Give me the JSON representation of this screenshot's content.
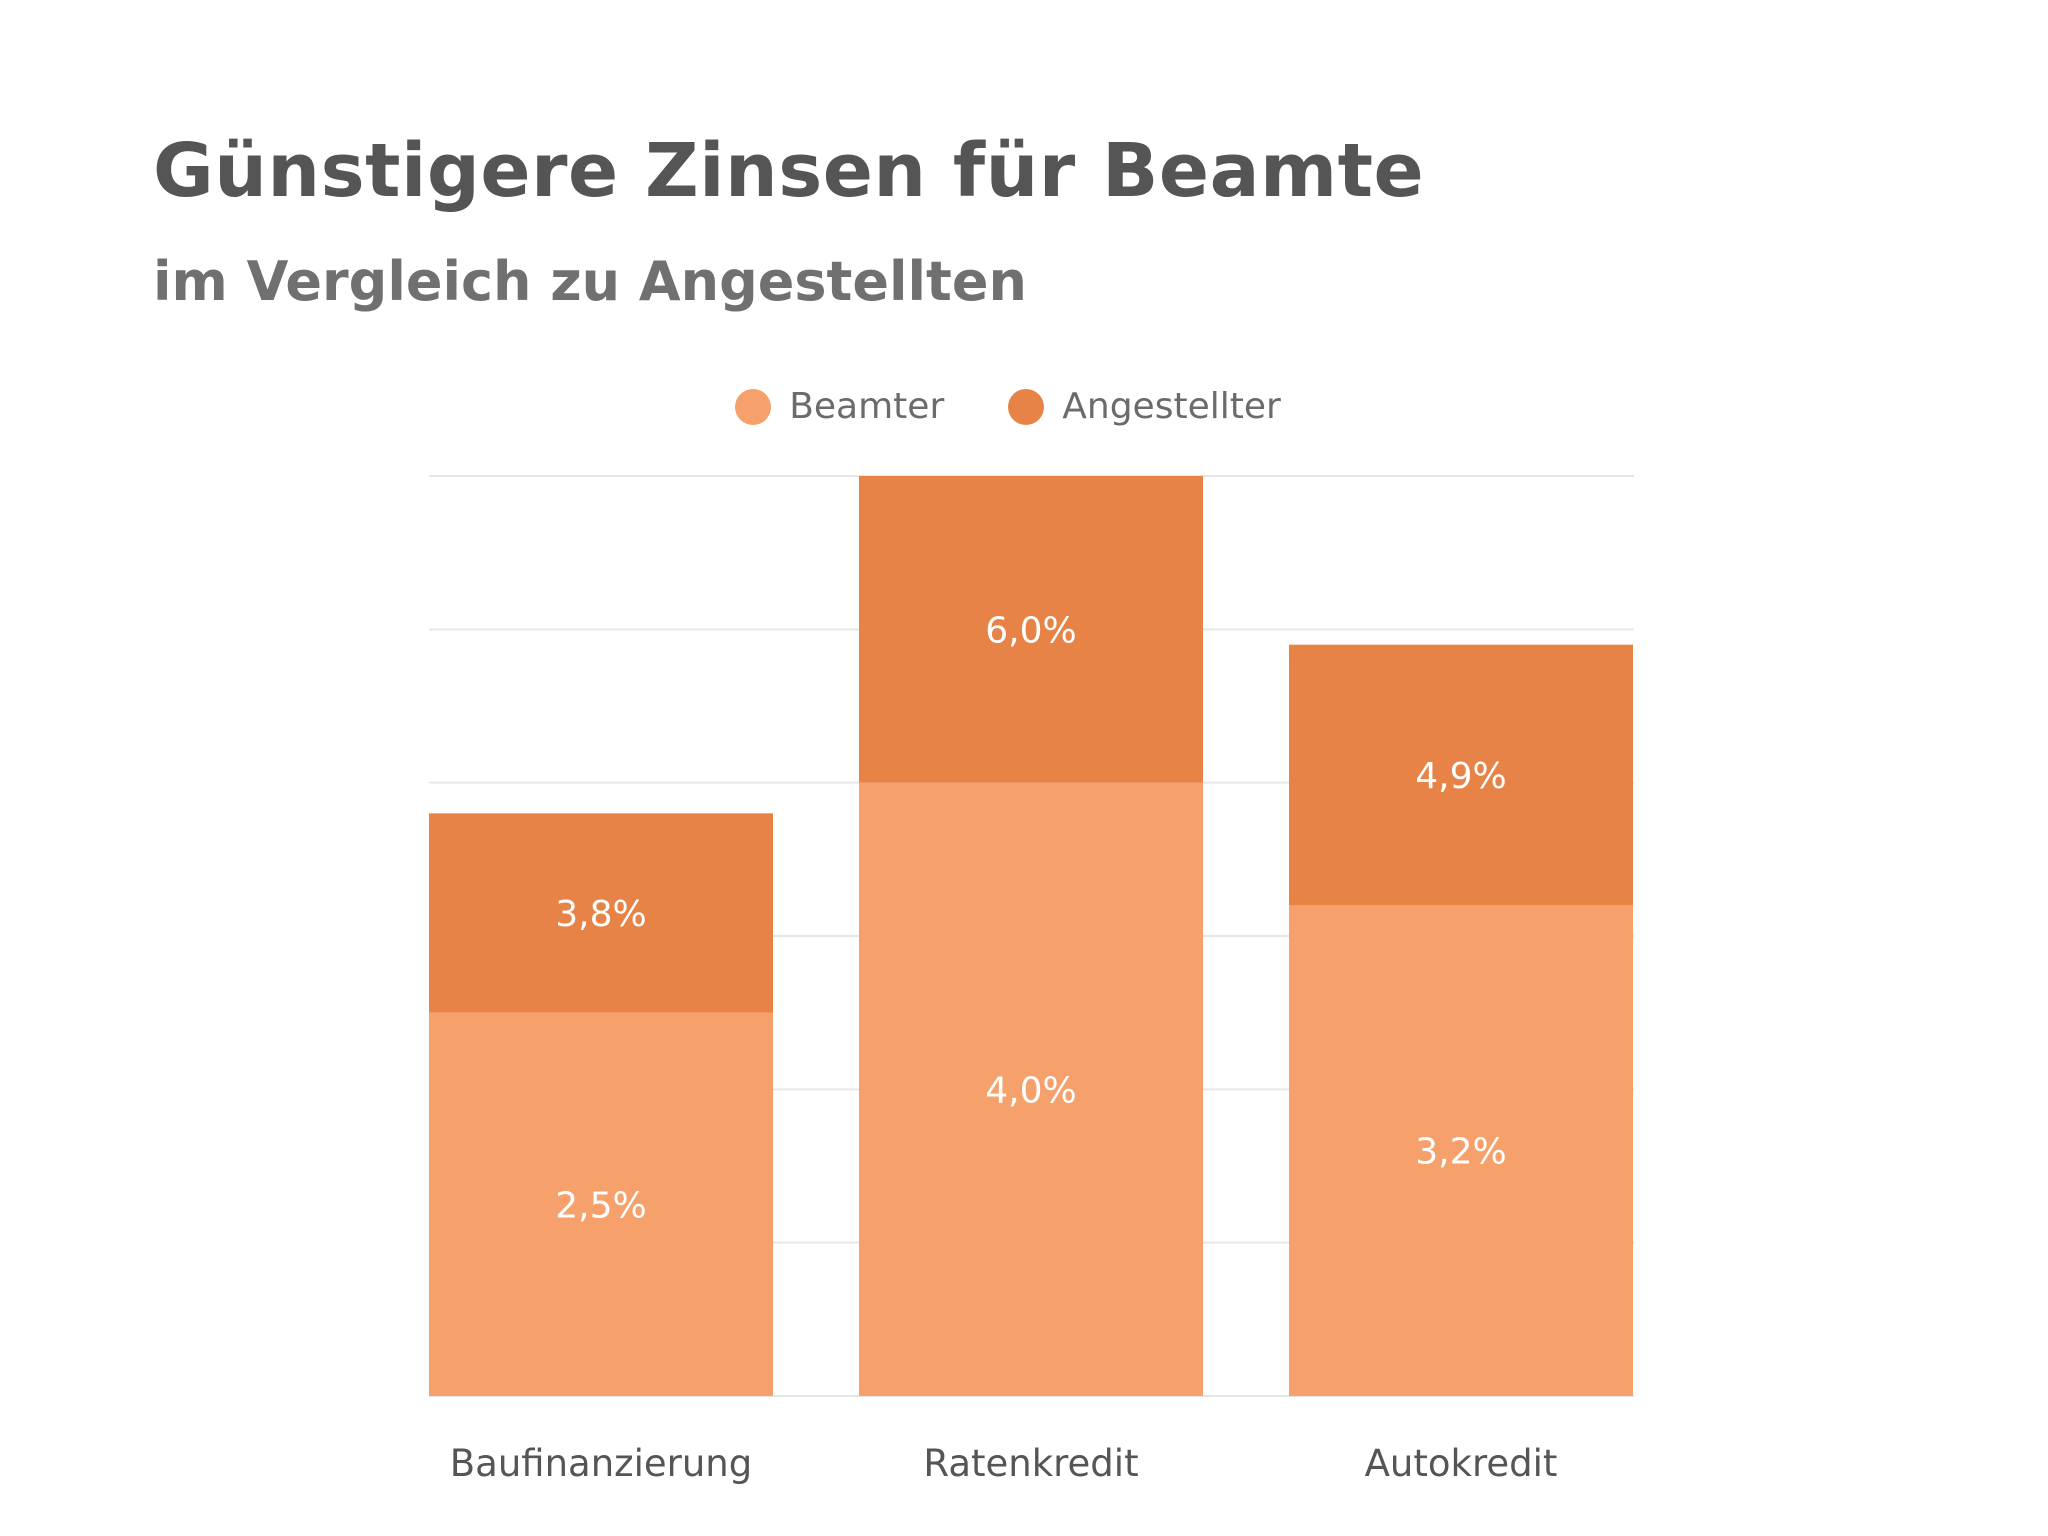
{
  "chart_data": {
    "type": "bar",
    "stacked": true,
    "title": "Günstigere Zinsen für Beamte",
    "subtitle": "im Vergleich zu Angestellten",
    "categories": [
      "Baufinanzierung",
      "Ratenkredit",
      "Autokredit"
    ],
    "series": [
      {
        "name": "Beamter",
        "color": "#f6a16b",
        "values": [
          2.5,
          4.0,
          3.2
        ],
        "labels": [
          "2,5%",
          "4,0%",
          "3,2%"
        ]
      },
      {
        "name": "Angestellter",
        "color": "#e78346",
        "values": [
          1.3,
          2.0,
          1.7
        ],
        "labels": [
          "3,8%",
          "6,0%",
          "4,9%"
        ]
      }
    ],
    "ylim": [
      0,
      6.0
    ],
    "grid": true,
    "legend": "top-center"
  }
}
